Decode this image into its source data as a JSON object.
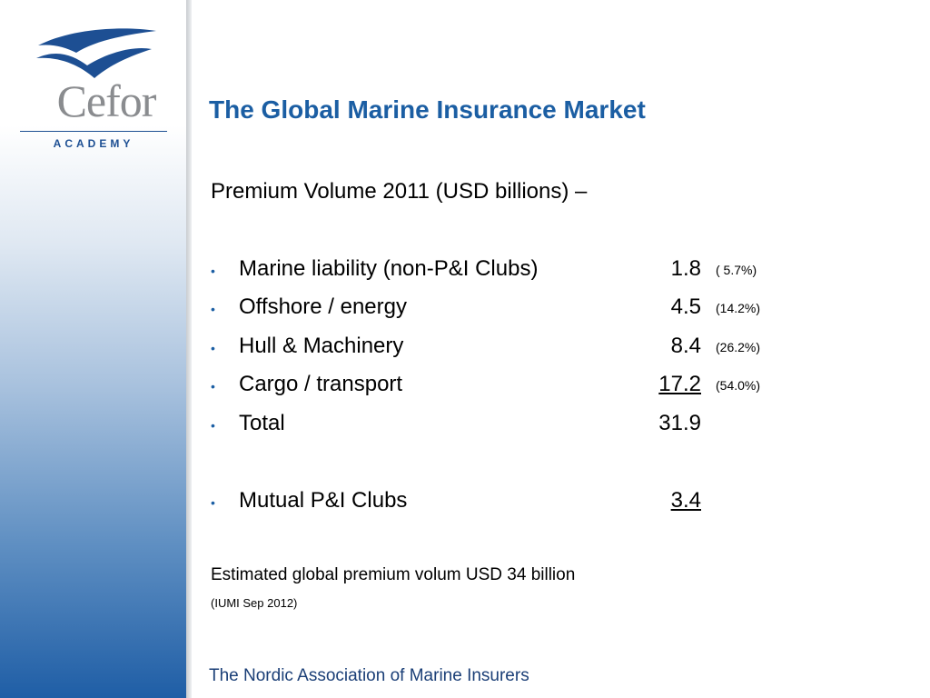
{
  "logo": {
    "wordmark": "Cefor",
    "tagline": "ACADEMY"
  },
  "slide": {
    "title": "The Global Marine Insurance Market",
    "subtitle": "Premium Volume 2011 (USD billions) –",
    "rows": [
      {
        "label": "Marine liability (non-P&I Clubs)",
        "value": "1.8",
        "share": "(  5.7%)"
      },
      {
        "label": "Offshore / energy",
        "value": "4.5",
        "share": "(14.2%)"
      },
      {
        "label": "Hull & Machinery",
        "value": "8.4",
        "share": "(26.2%)"
      },
      {
        "label": "Cargo / transport",
        "value": "17.2",
        "share": "(54.0%)"
      },
      {
        "label": "Total",
        "value": "31.9",
        "share": ""
      }
    ],
    "mutual": {
      "label": "Mutual P&I Clubs",
      "value": "3.4"
    },
    "note": "Estimated global premium volum USD 34 billion",
    "source": "(IUMI Sep 2012)"
  },
  "footer": "The Nordic Association of Marine Insurers",
  "colors": {
    "title": "#1b5ea3",
    "brand": "#1d4f93",
    "footer": "#1b3f77"
  }
}
